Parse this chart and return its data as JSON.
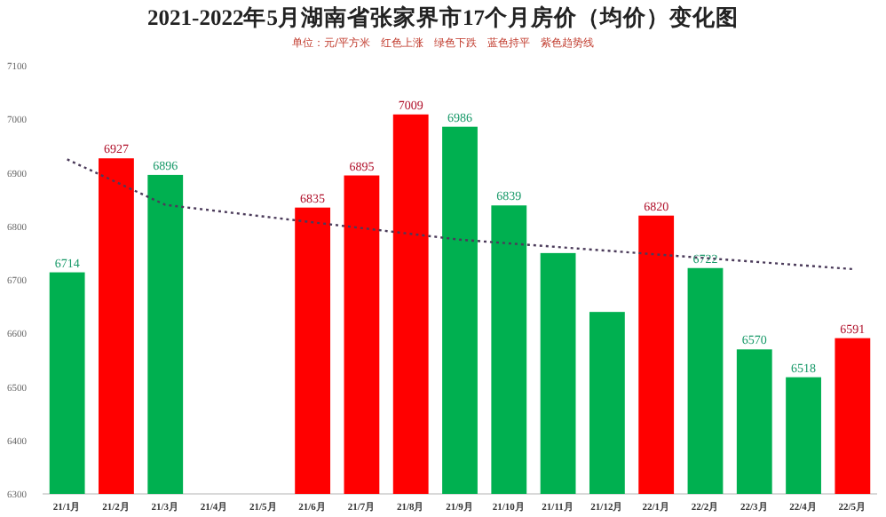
{
  "chart_data": {
    "type": "bar",
    "title": "2021-2022年5月湖南省张家界市17个月房价（均价）变化图",
    "subtitle": "单位：元/平方米　红色上涨　绿色下跌　蓝色持平　紫色趋势线",
    "categories": [
      "21/1月",
      "21/2月",
      "21/3月",
      "21/4月",
      "21/5月",
      "21/6月",
      "21/7月",
      "21/8月",
      "21/9月",
      "21/10月",
      "21/11月",
      "21/12月",
      "22/1月",
      "22/2月",
      "22/3月",
      "22/4月",
      "22/5月"
    ],
    "series": [
      {
        "values": [
          6714,
          6927,
          6896,
          null,
          null,
          6835,
          6895,
          7009,
          6986,
          6839,
          6750,
          6640,
          6820,
          6722,
          6570,
          6518,
          6591
        ],
        "colors": [
          "#00b050",
          "#ff0000",
          "#00b050",
          null,
          null,
          "#ff0000",
          "#ff0000",
          "#ff0000",
          "#00b050",
          "#00b050",
          "#00b050",
          "#00b050",
          "#ff0000",
          "#00b050",
          "#00b050",
          "#00b050",
          "#ff0000"
        ],
        "value_labels": [
          "6714",
          "6927",
          "6896",
          null,
          null,
          "6835",
          "6895",
          "7009",
          "6986",
          "6839",
          null,
          null,
          "6820",
          "6722",
          "6570",
          "6518",
          "6591"
        ]
      },
      {
        "type": "line",
        "color": "#4b3b5a",
        "line_style": "dotted",
        "x": [
          "21/1月",
          "21/3月",
          "21/9月",
          "22/5月"
        ],
        "values": [
          6925,
          6840,
          6775,
          6720
        ]
      }
    ],
    "ylim": [
      6300,
      7100
    ],
    "yticks": [
      6300,
      6400,
      6500,
      6600,
      6700,
      6800,
      6900,
      7000,
      7100
    ],
    "grid": false
  }
}
